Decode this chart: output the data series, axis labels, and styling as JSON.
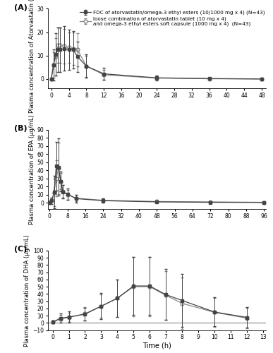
{
  "panel_A": {
    "label": "(A)",
    "ylabel": "Plasma concentration of Atorvastatin (µg/L)",
    "xticks": [
      0,
      4,
      8,
      12,
      16,
      20,
      24,
      28,
      32,
      36,
      40,
      44,
      48
    ],
    "xlim": [
      -0.8,
      49
    ],
    "ylim": [
      -4,
      30
    ],
    "yticks": [
      0,
      10,
      20,
      30
    ],
    "fdc_x": [
      0,
      0.5,
      1,
      1.5,
      2,
      3,
      4,
      5,
      6,
      8,
      12,
      24,
      36,
      48
    ],
    "fdc_y": [
      0.0,
      6.0,
      10.5,
      12.5,
      12.5,
      13.0,
      12.5,
      12.5,
      9.5,
      5.5,
      2.2,
      0.5,
      0.2,
      0.0
    ],
    "fdc_yerr": [
      0.3,
      6.5,
      9.0,
      9.5,
      9.5,
      9.5,
      8.5,
      8.0,
      6.5,
      5.0,
      2.5,
      1.0,
      0.5,
      0.2
    ],
    "lc_x": [
      0,
      0.5,
      1,
      1.5,
      2,
      3,
      4,
      5,
      6,
      8,
      12,
      24,
      36,
      48
    ],
    "lc_y": [
      0.0,
      6.0,
      9.5,
      14.5,
      14.5,
      14.0,
      13.5,
      13.0,
      12.5,
      5.5,
      1.8,
      0.4,
      0.1,
      0.0
    ],
    "lc_yerr": [
      0.3,
      5.5,
      8.0,
      7.5,
      7.5,
      7.5,
      6.5,
      7.0,
      7.0,
      4.5,
      2.0,
      0.8,
      0.4,
      0.2
    ],
    "legend_fdc": "FDC of atorvastatin/omega-3 ethyl esters (10/1000 mg x 4) (N=43)",
    "legend_lc1": "loose combination of atorvastatin tablet (10 mg x 4)",
    "legend_lc2": "and omega-3 ethyl esters soft capsule (1000 mg x 4)  (N=43)"
  },
  "panel_B": {
    "label": "(B)",
    "ylabel": "Plasma concentration of EPA (µg/mL)",
    "xticks": [
      0,
      8,
      16,
      24,
      32,
      40,
      48,
      56,
      64,
      72,
      80,
      88,
      96
    ],
    "xlim": [
      -0.8,
      97
    ],
    "ylim": [
      -8,
      90
    ],
    "yticks": [
      0,
      10,
      20,
      30,
      40,
      50,
      60,
      70,
      80,
      90
    ],
    "fdc_x": [
      0,
      1,
      2,
      3,
      4,
      5,
      6,
      8,
      12,
      24,
      48,
      72,
      96
    ],
    "fdc_y": [
      0.5,
      2.5,
      13.0,
      45.0,
      44.0,
      26.0,
      13.5,
      10.5,
      5.0,
      2.5,
      1.0,
      0.5,
      0.3
    ],
    "fdc_yerr": [
      1.0,
      4.0,
      20.0,
      30.0,
      35.0,
      12.0,
      8.0,
      7.0,
      4.5,
      2.5,
      1.2,
      0.8,
      0.5
    ],
    "lc_x": [
      0,
      1,
      2,
      3,
      4,
      5,
      6,
      8,
      12,
      24,
      48,
      72,
      96
    ],
    "lc_y": [
      0.5,
      2.5,
      12.5,
      30.0,
      42.5,
      26.5,
      14.0,
      10.0,
      5.5,
      3.0,
      1.5,
      1.0,
      0.5
    ],
    "lc_yerr": [
      1.0,
      4.0,
      17.0,
      22.0,
      32.0,
      10.0,
      8.0,
      6.0,
      4.0,
      2.5,
      1.5,
      1.0,
      0.8
    ]
  },
  "panel_C": {
    "label": "(C)",
    "ylabel": "Plasma concentration of DHA (µg/mL)",
    "xlabel": "Time (h)",
    "xticks": [
      0,
      1,
      2,
      3,
      4,
      5,
      6,
      7,
      8,
      9,
      10,
      11,
      12,
      13
    ],
    "xlim": [
      -0.3,
      13.2
    ],
    "ylim": [
      -10,
      100
    ],
    "yticks": [
      -10,
      0,
      10,
      20,
      30,
      40,
      50,
      60,
      70,
      80,
      90,
      100
    ],
    "fdc_x": [
      0,
      0.5,
      1,
      2,
      3,
      4,
      5,
      6,
      7,
      8,
      10,
      12
    ],
    "fdc_y": [
      1.0,
      6.5,
      8.0,
      12.0,
      23.0,
      34.0,
      51.0,
      51.0,
      39.0,
      31.0,
      15.0,
      7.5
    ],
    "fdc_yerr": [
      2.0,
      6.0,
      7.5,
      9.0,
      18.0,
      26.0,
      40.0,
      40.0,
      35.0,
      37.0,
      20.0,
      14.0
    ],
    "lc_x": [
      0,
      0.5,
      1,
      2,
      3,
      4,
      5,
      6,
      7,
      8,
      10,
      12
    ],
    "lc_y": [
      1.0,
      5.5,
      7.5,
      12.5,
      23.0,
      34.0,
      50.0,
      50.0,
      38.0,
      27.0,
      14.5,
      6.5
    ],
    "lc_yerr": [
      2.0,
      5.5,
      6.5,
      9.0,
      16.0,
      26.0,
      41.0,
      41.0,
      34.0,
      36.0,
      20.0,
      14.0
    ]
  },
  "fdc_color": "#444444",
  "lc_color": "#888888",
  "fdc_marker": "s",
  "lc_marker": "o",
  "fdc_markerfacecolor": "#444444",
  "lc_markerfacecolor": "white",
  "marker_size": 3.5,
  "linewidth": 0.9,
  "capsize": 1.5,
  "elinewidth": 0.7,
  "fontsize_label": 6,
  "fontsize_tick": 5.5,
  "fontsize_legend": 5.2,
  "fontsize_panel": 8,
  "fontsize_xlabel": 7
}
